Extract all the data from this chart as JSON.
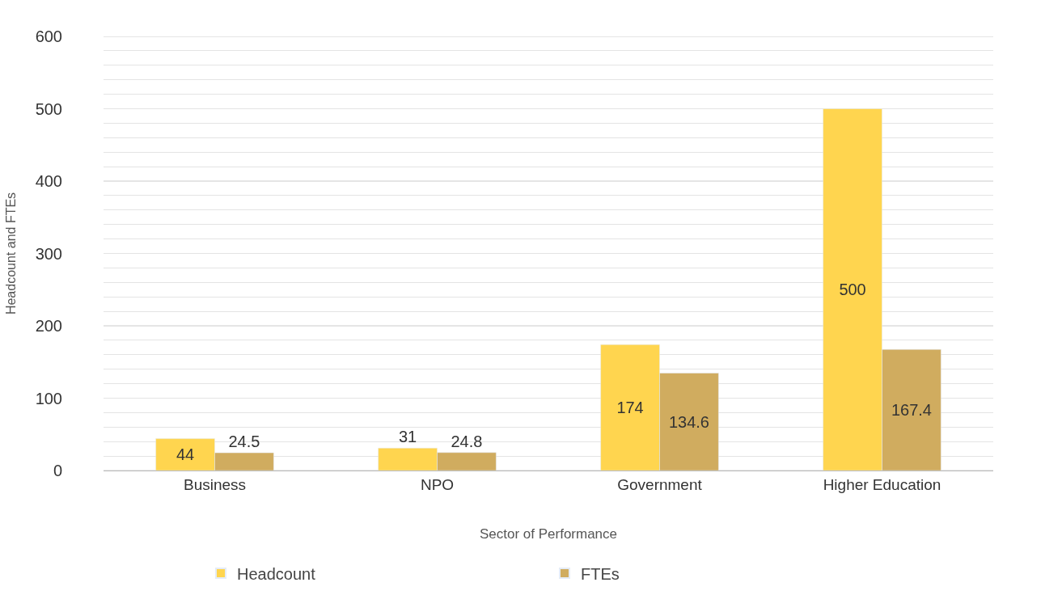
{
  "chart_data": {
    "type": "bar",
    "xlabel": "Sector of Performance",
    "ylabel": "Headcount and FTEs",
    "categories": [
      "Business",
      "NPO",
      "Government",
      "Higher Education"
    ],
    "series": [
      {
        "name": "Headcount",
        "color": "#ffd54f",
        "values": [
          44,
          31,
          174,
          500
        ]
      },
      {
        "name": "FTEs",
        "color": "#d0ac5f",
        "values": [
          24.5,
          24.8,
          134.6,
          167.4
        ]
      }
    ],
    "ylim": [
      0,
      600
    ],
    "yticks": [
      0,
      {
        "value": 20,
        "label": null
      },
      {
        "value": 40,
        "label": null
      },
      {
        "value": 60,
        "label": null
      },
      {
        "value": 80,
        "label": null
      },
      100,
      {
        "value": 120,
        "label": null
      },
      {
        "value": 140,
        "label": null
      },
      {
        "value": 160,
        "label": null
      },
      {
        "value": 180,
        "label": null
      },
      200,
      {
        "value": 220,
        "label": null
      },
      {
        "value": 240,
        "label": null
      },
      {
        "value": 260,
        "label": null
      },
      {
        "value": 280,
        "label": null
      },
      300,
      {
        "value": 320,
        "label": null
      },
      {
        "value": 340,
        "label": null
      },
      {
        "value": 360,
        "label": null
      },
      {
        "value": 380,
        "label": null
      },
      400,
      {
        "value": 420,
        "label": null
      },
      {
        "value": 440,
        "label": null
      },
      {
        "value": 460,
        "label": null
      },
      {
        "value": 480,
        "label": null
      },
      500,
      {
        "value": 520,
        "label": null
      },
      {
        "value": 540,
        "label": null
      },
      {
        "value": 560,
        "label": null
      },
      {
        "value": 580,
        "label": null
      },
      600
    ],
    "grid": true,
    "legend": "bottom",
    "data_labels": true
  }
}
